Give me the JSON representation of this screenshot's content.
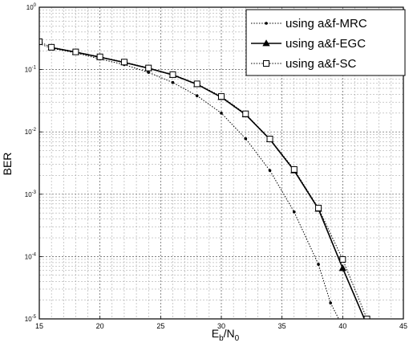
{
  "chart_data": {
    "type": "line",
    "xlabel": {
      "main": "E",
      "sub1": "b",
      "slash": "/N",
      "sub2": "0"
    },
    "ylabel": "BER",
    "xlim": [
      15,
      45
    ],
    "ylim": [
      1e-05,
      1
    ],
    "yscale": "log",
    "grid": true,
    "legend_position": "top-right",
    "x_ticks": [
      "15",
      "20",
      "25",
      "30",
      "35",
      "40",
      "45"
    ],
    "y_ticks": [
      {
        "value": 1,
        "base": "10",
        "exp": "0"
      },
      {
        "value": 0.1,
        "base": "10",
        "exp": "-1"
      },
      {
        "value": 0.01,
        "base": "10",
        "exp": "-2"
      },
      {
        "value": 0.001,
        "base": "10",
        "exp": "-3"
      },
      {
        "value": 0.0001,
        "base": "10",
        "exp": "-4"
      },
      {
        "value": 1e-05,
        "base": "10",
        "exp": "-5"
      }
    ],
    "series": [
      {
        "name": "using a&f-MRC",
        "line_style": "dotted",
        "marker": "dot",
        "x": [
          15,
          16,
          18,
          20,
          22,
          24,
          26,
          28,
          30,
          32,
          34,
          36,
          38,
          39,
          40
        ],
        "y": [
          0.26,
          0.22,
          0.185,
          0.148,
          0.12,
          0.09,
          0.062,
          0.038,
          0.02,
          0.0078,
          0.0024,
          0.00052,
          7.5e-05,
          1.8e-05,
          7.5e-06
        ]
      },
      {
        "name": "using a&f-EGC",
        "line_style": "solid",
        "marker": "triangle",
        "x": [
          16,
          18,
          20,
          22,
          24,
          26,
          28,
          30,
          32,
          34,
          36,
          38,
          40,
          42
        ],
        "y": [
          0.225,
          0.19,
          0.158,
          0.13,
          0.105,
          0.082,
          0.058,
          0.036,
          0.019,
          0.0076,
          0.0024,
          0.00058,
          6.5e-05,
          8e-06
        ]
      },
      {
        "name": "using a&f-SC",
        "line_style": "dotted",
        "marker": "square",
        "x": [
          15,
          16,
          18,
          20,
          22,
          24,
          26,
          28,
          30,
          32,
          34,
          36,
          38,
          40,
          42
        ],
        "y": [
          0.28,
          0.228,
          0.192,
          0.16,
          0.132,
          0.106,
          0.083,
          0.059,
          0.037,
          0.0195,
          0.0077,
          0.0025,
          0.0006,
          9e-05,
          1e-05
        ]
      }
    ]
  }
}
